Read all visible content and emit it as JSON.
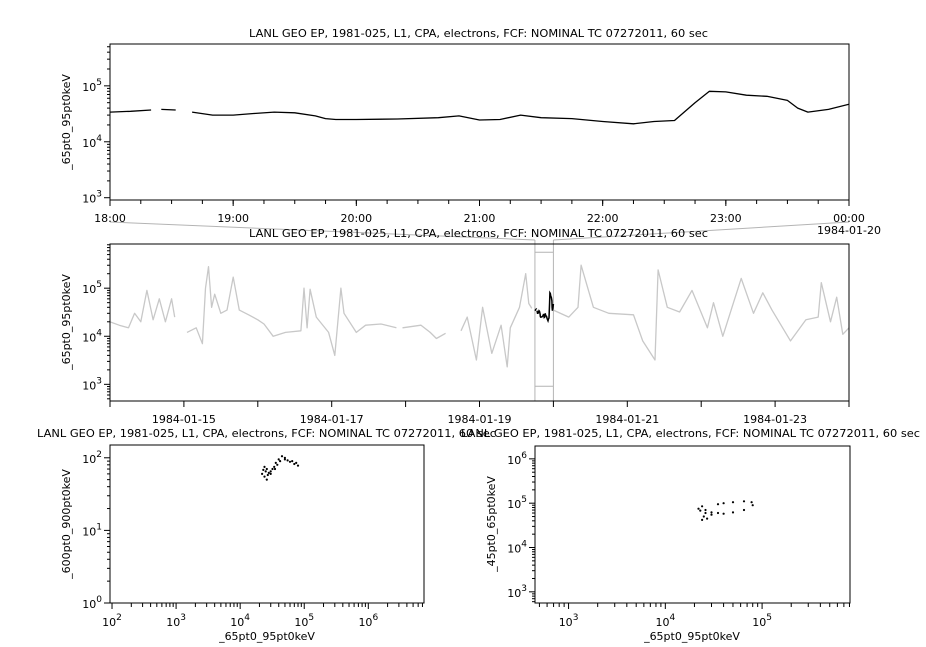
{
  "chart_data": [
    {
      "id": "top",
      "type": "line",
      "title": "LANL GEO EP, 1981-025, L1, CPA, electrons, FCF: NOMINAL TC 07272011, 60 sec",
      "xlabel": "",
      "ylabel": "_65pt0_95pt0keV",
      "x_scale": "time",
      "y_scale": "log",
      "xlim": [
        "1984-01-19T18:00",
        "1984-01-20T00:00"
      ],
      "ylim": [
        910,
        560000
      ],
      "x_ticks": [
        {
          "t": "1984-01-19T18:00",
          "label": "18:00"
        },
        {
          "t": "1984-01-19T19:00",
          "label": "19:00"
        },
        {
          "t": "1984-01-19T20:00",
          "label": "20:00"
        },
        {
          "t": "1984-01-19T21:00",
          "label": "21:00"
        },
        {
          "t": "1984-01-19T22:00",
          "label": "22:00"
        },
        {
          "t": "1984-01-19T23:00",
          "label": "23:00"
        },
        {
          "t": "1984-01-20T00:00",
          "label": "00:00",
          "label2": "1984-01-20"
        }
      ],
      "y_ticks": [
        {
          "v": 1000,
          "label": "10^3"
        },
        {
          "v": 10000,
          "label": "10^4"
        },
        {
          "v": 100000,
          "label": "10^5"
        }
      ],
      "grid": false,
      "color": "#000000",
      "series": [
        {
          "points": [
            [
              "1984-01-19T18:00",
              34000
            ],
            [
              "1984-01-19T18:10",
              35000
            ],
            [
              "1984-01-19T18:20",
              37000
            ],
            [
              "1984-01-19T18:21",
              null
            ],
            [
              "1984-01-19T18:25",
              38000
            ],
            [
              "1984-01-19T18:32",
              37000
            ],
            [
              "1984-01-19T18:33",
              null
            ],
            [
              "1984-01-19T18:40",
              34000
            ],
            [
              "1984-01-19T18:50",
              30000
            ],
            [
              "1984-01-19T19:00",
              30000
            ],
            [
              "1984-01-19T19:10",
              32000
            ],
            [
              "1984-01-19T19:20",
              34000
            ],
            [
              "1984-01-19T19:30",
              33000
            ],
            [
              "1984-01-19T19:40",
              29000
            ],
            [
              "1984-01-19T19:45",
              26000
            ],
            [
              "1984-01-19T19:50",
              25000
            ],
            [
              "1984-01-19T20:00",
              25000
            ],
            [
              "1984-01-19T20:20",
              25500
            ],
            [
              "1984-01-19T20:40",
              27000
            ],
            [
              "1984-01-19T20:50",
              29000
            ],
            [
              "1984-01-19T21:00",
              24500
            ],
            [
              "1984-01-19T21:10",
              25000
            ],
            [
              "1984-01-19T21:20",
              30000
            ],
            [
              "1984-01-19T21:30",
              27000
            ],
            [
              "1984-01-19T21:45",
              26000
            ],
            [
              "1984-01-19T22:00",
              23000
            ],
            [
              "1984-01-19T22:15",
              21000
            ],
            [
              "1984-01-19T22:25",
              23000
            ],
            [
              "1984-01-19T22:35",
              24000
            ],
            [
              "1984-01-19T22:45",
              50000
            ],
            [
              "1984-01-19T22:52",
              80000
            ],
            [
              "1984-01-19T23:00",
              78000
            ],
            [
              "1984-01-19T23:10",
              68000
            ],
            [
              "1984-01-19T23:20",
              65000
            ],
            [
              "1984-01-19T23:30",
              55000
            ],
            [
              "1984-01-19T23:35",
              40000
            ],
            [
              "1984-01-19T23:40",
              34000
            ],
            [
              "1984-01-19T23:50",
              38000
            ],
            [
              "1984-01-20T00:00",
              47000
            ]
          ]
        }
      ]
    },
    {
      "id": "middle",
      "type": "line",
      "title": "LANL GEO EP, 1981-025, L1, CPA, electrons, FCF: NOMINAL TC 07272011, 60 sec",
      "xlabel": "",
      "ylabel": "_65pt0_95pt0keV",
      "x_scale": "time",
      "y_scale": "log",
      "xlim": [
        "1984-01-14T00:00",
        "1984-01-24T00:00"
      ],
      "ylim": [
        450,
        830000
      ],
      "highlight": [
        "1984-01-19T18:00",
        "1984-01-20T00:00"
      ],
      "x_ticks": [
        {
          "t": "1984-01-14T00:00",
          "label": ""
        },
        {
          "t": "1984-01-15T00:00",
          "label": "1984-01-15"
        },
        {
          "t": "1984-01-16T00:00",
          "label": ""
        },
        {
          "t": "1984-01-17T00:00",
          "label": "1984-01-17"
        },
        {
          "t": "1984-01-18T00:00",
          "label": ""
        },
        {
          "t": "1984-01-19T00:00",
          "label": "1984-01-19"
        },
        {
          "t": "1984-01-20T00:00",
          "label": ""
        },
        {
          "t": "1984-01-21T00:00",
          "label": "1984-01-21"
        },
        {
          "t": "1984-01-22T00:00",
          "label": ""
        },
        {
          "t": "1984-01-23T00:00",
          "label": "1984-01-23"
        },
        {
          "t": "1984-01-24T00:00",
          "label": ""
        }
      ],
      "y_ticks": [
        {
          "v": 1000,
          "label": "10^3"
        },
        {
          "v": 10000,
          "label": "10^4"
        },
        {
          "v": 100000,
          "label": "10^5"
        }
      ],
      "grid": false,
      "color": "#c8c8c8",
      "highlight_color": "#000000",
      "series": [
        {
          "points": [
            [
              "1984-01-14T00:00",
              20000
            ],
            [
              "1984-01-14T03:00",
              17000
            ],
            [
              "1984-01-14T06:00",
              15000
            ],
            [
              "1984-01-14T08:00",
              30000
            ],
            [
              "1984-01-14T10:00",
              20000
            ],
            [
              "1984-01-14T12:00",
              90000
            ],
            [
              "1984-01-14T14:00",
              22000
            ],
            [
              "1984-01-14T16:00",
              60000
            ],
            [
              "1984-01-14T18:00",
              20000
            ],
            [
              "1984-01-14T20:00",
              60000
            ],
            [
              "1984-01-14T21:00",
              25000
            ],
            [
              "1984-01-14T22:00",
              null
            ],
            [
              "1984-01-15T01:00",
              12000
            ],
            [
              "1984-01-15T04:00",
              15000
            ],
            [
              "1984-01-15T06:00",
              7000
            ],
            [
              "1984-01-15T07:00",
              100000
            ],
            [
              "1984-01-15T08:00",
              280000
            ],
            [
              "1984-01-15T09:00",
              40000
            ],
            [
              "1984-01-15T10:00",
              75000
            ],
            [
              "1984-01-15T12:00",
              30000
            ],
            [
              "1984-01-15T14:00",
              35000
            ],
            [
              "1984-01-15T16:00",
              170000
            ],
            [
              "1984-01-15T18:00",
              35000
            ],
            [
              "1984-01-15T21:00",
              28000
            ],
            [
              "1984-01-16T00:00",
              22000
            ],
            [
              "1984-01-16T02:00",
              18000
            ],
            [
              "1984-01-16T05:00",
              10000
            ],
            [
              "1984-01-16T09:00",
              12000
            ],
            [
              "1984-01-16T14:00",
              13000
            ],
            [
              "1984-01-16T15:00",
              100000
            ],
            [
              "1984-01-16T16:00",
              15000
            ],
            [
              "1984-01-16T17:00",
              95000
            ],
            [
              "1984-01-16T19:00",
              25000
            ],
            [
              "1984-01-16T23:00",
              12000
            ],
            [
              "1984-01-17T01:00",
              4000
            ],
            [
              "1984-01-17T03:00",
              100000
            ],
            [
              "1984-01-17T04:00",
              30000
            ],
            [
              "1984-01-17T08:00",
              12000
            ],
            [
              "1984-01-17T11:00",
              17000
            ],
            [
              "1984-01-17T16:00",
              18000
            ],
            [
              "1984-01-17T21:00",
              15000
            ],
            [
              "1984-01-17T22:00",
              null
            ],
            [
              "1984-01-17T23:00",
              15000
            ],
            [
              "1984-01-18T05:00",
              17000
            ],
            [
              "1984-01-18T08:00",
              12000
            ],
            [
              "1984-01-18T10:00",
              9000
            ],
            [
              "1984-01-18T13:00",
              11500
            ],
            [
              "1984-01-18T14:00",
              null
            ],
            [
              "1984-01-18T18:00",
              13000
            ],
            [
              "1984-01-18T20:00",
              25000
            ],
            [
              "1984-01-18T23:00",
              3200
            ],
            [
              "1984-01-19T01:00",
              40000
            ],
            [
              "1984-01-19T04:00",
              4400
            ],
            [
              "1984-01-19T07:00",
              17000
            ],
            [
              "1984-01-19T09:00",
              2300
            ],
            [
              "1984-01-19T10:00",
              15000
            ],
            [
              "1984-01-19T13:00",
              40000
            ],
            [
              "1984-01-19T15:00",
              200000
            ],
            [
              "1984-01-19T16:00",
              48000
            ],
            [
              "1984-01-19T17:00",
              38000
            ],
            [
              "1984-01-19T18:00",
              null
            ],
            [
              "1984-01-20T00:00",
              35000
            ],
            [
              "1984-01-20T05:00",
              25000
            ],
            [
              "1984-01-20T08:00",
              40000
            ],
            [
              "1984-01-20T09:00",
              300000
            ],
            [
              "1984-01-20T13:00",
              40000
            ],
            [
              "1984-01-20T18:00",
              30000
            ],
            [
              "1984-01-21T02:00",
              28000
            ],
            [
              "1984-01-21T05:00",
              8000
            ],
            [
              "1984-01-21T09:00",
              3200
            ],
            [
              "1984-01-21T10:00",
              240000
            ],
            [
              "1984-01-21T13:00",
              40000
            ],
            [
              "1984-01-21T17:00",
              32000
            ],
            [
              "1984-01-21T21:00",
              90000
            ],
            [
              "1984-01-22T02:00",
              15000
            ],
            [
              "1984-01-22T04:00",
              50000
            ],
            [
              "1984-01-22T07:00",
              10000
            ],
            [
              "1984-01-22T10:00",
              40000
            ],
            [
              "1984-01-22T13:00",
              160000
            ],
            [
              "1984-01-22T17:00",
              30000
            ],
            [
              "1984-01-22T20:00",
              80000
            ],
            [
              "1984-01-22T23:00",
              35000
            ],
            [
              "1984-01-23T05:00",
              8000
            ],
            [
              "1984-01-23T10:00",
              22000
            ],
            [
              "1984-01-23T14:00",
              25000
            ],
            [
              "1984-01-23T15:00",
              130000
            ],
            [
              "1984-01-23T18:00",
              20000
            ],
            [
              "1984-01-23T20:00",
              65000
            ],
            [
              "1984-01-23T22:00",
              11000
            ],
            [
              "1984-01-24T00:00",
              15000
            ]
          ]
        }
      ]
    },
    {
      "id": "bottom-left",
      "type": "scatter",
      "title": "LANL GEO EP, 1981-025, L1, CPA, electrons, FCF: NOMINAL TC 07272011, 60 sec",
      "xlabel": "_65pt0_95pt0keV",
      "ylabel": "_600pt0_900pt0keV",
      "x_scale": "log",
      "y_scale": "log",
      "xlim": [
        93,
        7400000
      ],
      "ylim": [
        1,
        150
      ],
      "x_ticks": [
        {
          "v": 100,
          "label": "10^2"
        },
        {
          "v": 1000,
          "label": "10^3"
        },
        {
          "v": 10000,
          "label": "10^4"
        },
        {
          "v": 100000,
          "label": "10^5"
        },
        {
          "v": 1000000,
          "label": "10^6"
        }
      ],
      "y_ticks": [
        {
          "v": 1,
          "label": "10^0"
        },
        {
          "v": 10,
          "label": "10^1"
        },
        {
          "v": 100,
          "label": "10^2"
        }
      ],
      "grid": false,
      "color": "#000000",
      "points": [
        [
          22000,
          60
        ],
        [
          24000,
          55
        ],
        [
          25000,
          65
        ],
        [
          26000,
          70
        ],
        [
          27000,
          58
        ],
        [
          28000,
          62
        ],
        [
          23000,
          68
        ],
        [
          30000,
          65
        ],
        [
          32000,
          70
        ],
        [
          34000,
          75
        ],
        [
          36000,
          85
        ],
        [
          40000,
          95
        ],
        [
          45000,
          105
        ],
        [
          50000,
          100
        ],
        [
          55000,
          92
        ],
        [
          60000,
          88
        ],
        [
          70000,
          82
        ],
        [
          80000,
          78
        ],
        [
          75000,
          85
        ],
        [
          65000,
          90
        ],
        [
          50000,
          95
        ],
        [
          42000,
          90
        ],
        [
          38000,
          80
        ],
        [
          35000,
          70
        ],
        [
          30000,
          60
        ],
        [
          26000,
          50
        ],
        [
          24000,
          75
        ]
      ]
    },
    {
      "id": "bottom-right",
      "type": "scatter",
      "title": "LANL GEO EP, 1981-025, L1, CPA, electrons, FCF: NOMINAL TC 07272011, 60 sec",
      "xlabel": "_65pt0_95pt0keV",
      "ylabel": "_45pt0_65pt0keV",
      "x_scale": "log",
      "y_scale": "log",
      "xlim": [
        450,
        810000
      ],
      "ylim": [
        560,
        1950000
      ],
      "x_ticks": [
        {
          "v": 1000,
          "label": "10^3"
        },
        {
          "v": 10000,
          "label": "10^4"
        },
        {
          "v": 100000,
          "label": "10^5"
        }
      ],
      "y_ticks": [
        {
          "v": 1000,
          "label": "10^3"
        },
        {
          "v": 10000,
          "label": "10^4"
        },
        {
          "v": 100000,
          "label": "10^5"
        },
        {
          "v": 1000000,
          "label": "10^6"
        }
      ],
      "grid": false,
      "color": "#000000",
      "points": [
        [
          22000,
          75000
        ],
        [
          24000,
          85000
        ],
        [
          26000,
          70000
        ],
        [
          25000,
          50000
        ],
        [
          24000,
          42000
        ],
        [
          27000,
          45000
        ],
        [
          30000,
          55000
        ],
        [
          35000,
          60000
        ],
        [
          40000,
          58000
        ],
        [
          50000,
          62000
        ],
        [
          65000,
          70000
        ],
        [
          80000,
          90000
        ],
        [
          78000,
          105000
        ],
        [
          65000,
          110000
        ],
        [
          50000,
          105000
        ],
        [
          40000,
          100000
        ],
        [
          35000,
          95000
        ],
        [
          30000,
          62000
        ],
        [
          26000,
          60000
        ],
        [
          23000,
          68000
        ]
      ]
    }
  ]
}
